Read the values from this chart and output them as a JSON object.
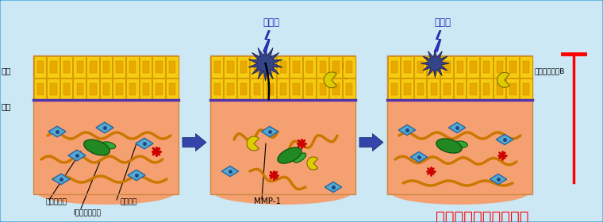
{
  "bg_color": "#cce8f4",
  "border_color": "#44aadd",
  "labels": {
    "hyodermis": "表皮",
    "dermis": "真皮",
    "fibroblast": "線維芙細胞",
    "collagen": "Ⅰ型コラーゲン",
    "decorin": "デコリン",
    "mmp1": "MMP-1",
    "granzyme": "グランザイムB",
    "uv": "紫外線",
    "extract": "ゲンノショウコエキス"
  }
}
